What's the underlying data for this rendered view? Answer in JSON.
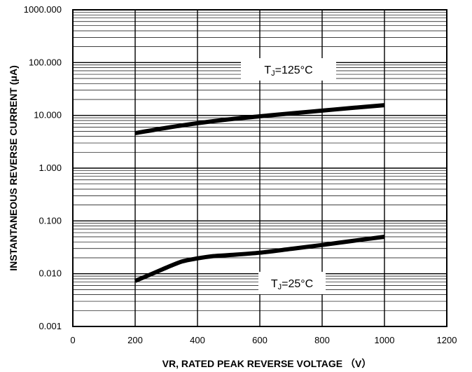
{
  "chart_data": {
    "type": "line",
    "title": "",
    "xlabel": "VR, RATED PEAK REVERSE VOLTAGE （V）",
    "ylabel": "INSTANTANEOUS REVERSE CURRENT (μA)",
    "xlim": [
      0,
      1200
    ],
    "ylim": [
      0.001,
      1000
    ],
    "yscale": "log",
    "grid": true,
    "x_ticks": [
      0,
      200,
      400,
      600,
      800,
      1000,
      1200
    ],
    "x_tick_labels": [
      "0",
      "200",
      "400",
      "600",
      "800",
      "1000",
      "1200"
    ],
    "y_ticks": [
      0.001,
      0.01,
      0.1,
      1,
      10,
      100,
      1000
    ],
    "y_tick_labels": [
      "0.001",
      "0.010",
      "0.100",
      "1.000",
      "10.000",
      "100.000",
      "1000.000"
    ],
    "series": [
      {
        "name": "TJ=125°C",
        "x": [
          200,
          300,
          400,
          500,
          600,
          700,
          800,
          900,
          1000
        ],
        "y": [
          4.6,
          5.8,
          7.1,
          8.4,
          9.6,
          10.9,
          12.3,
          13.9,
          15.6
        ]
      },
      {
        "name": "TJ=25°C",
        "x": [
          200,
          250,
          300,
          350,
          400,
          450,
          500,
          600,
          700,
          800,
          900,
          1000
        ],
        "y": [
          0.0073,
          0.0097,
          0.013,
          0.017,
          0.0195,
          0.0215,
          0.0225,
          0.025,
          0.0295,
          0.035,
          0.042,
          0.05
        ]
      }
    ],
    "annotations": [
      {
        "sub": "J",
        "main": "T",
        "rest": "=125°C",
        "series": "TJ=125°C"
      },
      {
        "sub": "J",
        "main": "T",
        "rest": "=25°C",
        "series": "TJ=25°C"
      }
    ]
  }
}
